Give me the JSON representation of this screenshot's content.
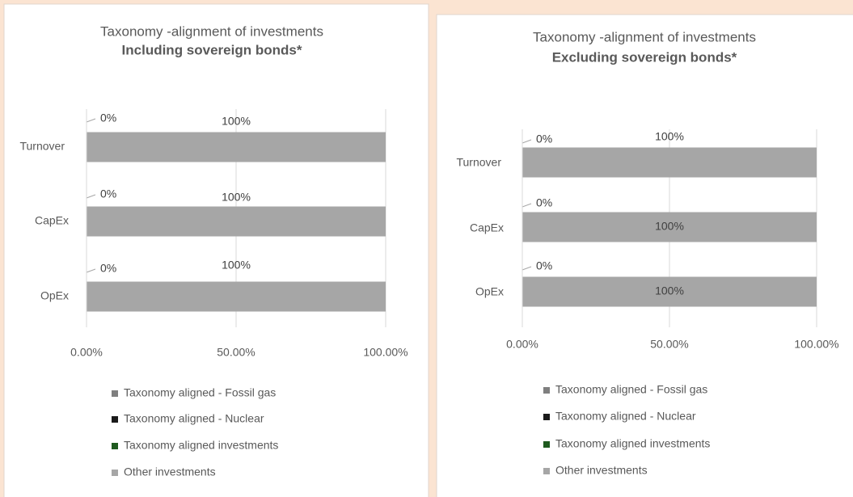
{
  "chart_data": [
    {
      "type": "bar",
      "orientation": "horizontal",
      "stacked": true,
      "title": "Taxonomy -alignment of investments",
      "subtitle": "Including sovereign bonds*",
      "categories": [
        "Turnover",
        "CapEx",
        "OpEx"
      ],
      "series": [
        {
          "name": "Taxonomy aligned - Fossil gas",
          "color": "#7f7f7f",
          "values": [
            0,
            0,
            0
          ]
        },
        {
          "name": "Taxonomy aligned - Nuclear",
          "color": "#1a1a1a",
          "values": [
            0,
            0,
            0
          ]
        },
        {
          "name": "Taxonomy aligned investments",
          "color": "#1f5a1f",
          "values": [
            0,
            0,
            0
          ],
          "value_labels": [
            "0%",
            "0%",
            "0%"
          ]
        },
        {
          "name": "Other investments",
          "color": "#a6a6a6",
          "values": [
            100,
            100,
            100
          ],
          "value_labels": [
            "100%",
            "100%",
            "100%"
          ]
        }
      ],
      "xlim": [
        0,
        100
      ],
      "xticks": [
        {
          "value": 0,
          "label": "0.00%"
        },
        {
          "value": 50,
          "label": "50.00%"
        },
        {
          "value": 100,
          "label": "100.00%"
        }
      ],
      "grid": true,
      "legend": "bottom"
    },
    {
      "type": "bar",
      "orientation": "horizontal",
      "stacked": true,
      "title": "Taxonomy -alignment of investments",
      "subtitle": "Excluding sovereign bonds*",
      "categories": [
        "Turnover",
        "CapEx",
        "OpEx"
      ],
      "series": [
        {
          "name": "Taxonomy aligned - Fossil gas",
          "color": "#7f7f7f",
          "values": [
            0,
            0,
            0
          ]
        },
        {
          "name": "Taxonomy aligned - Nuclear",
          "color": "#1a1a1a",
          "values": [
            0,
            0,
            0
          ]
        },
        {
          "name": "Taxonomy aligned investments",
          "color": "#1f5a1f",
          "values": [
            0,
            0,
            0
          ],
          "value_labels": [
            "0%",
            "0%",
            "0%"
          ]
        },
        {
          "name": "Other investments",
          "color": "#a6a6a6",
          "values": [
            100,
            100,
            100
          ],
          "value_labels": [
            "100%",
            "100%",
            "100%"
          ]
        }
      ],
      "xlim": [
        0,
        100
      ],
      "xticks": [
        {
          "value": 0,
          "label": "0.00%"
        },
        {
          "value": 50,
          "label": "50.00%"
        },
        {
          "value": 100,
          "label": "100.00%"
        }
      ],
      "grid": true,
      "legend": "bottom"
    }
  ]
}
